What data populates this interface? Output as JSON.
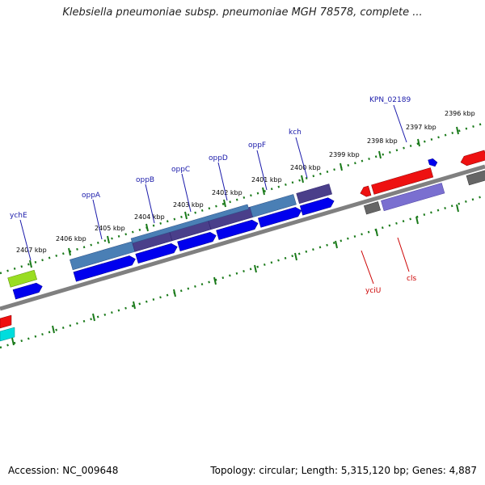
{
  "title": "Klebsiella pneumoniae subsp. pneumoniae MGH 78578, complete ...",
  "footer": {
    "accession": "Accession: NC_009648",
    "summary": "Topology: circular; Length: 5,315,120 bp; Genes: 4,887"
  },
  "ticks": [
    "2396 kbp",
    "2397 kbp",
    "2398 kbp",
    "2399 kbp",
    "2400 kbp",
    "2401 kbp",
    "2402 kbp",
    "2403 kbp",
    "2404 kbp",
    "2405 kbp",
    "2406 kbp",
    "2407 kbp"
  ],
  "gene_labels_top": [
    "ychE",
    "oppA",
    "oppB",
    "oppC",
    "oppD",
    "oppF",
    "kch",
    "KPN_02189"
  ],
  "gene_labels_bottom": [
    "yciU",
    "cls"
  ],
  "colors": {
    "backbone": "#808080",
    "tick": "#1a7a1a",
    "cds_blue": "#0000ee",
    "steel": "#4a7fb5",
    "purple": "#4a3f8a",
    "red": "#ee1111",
    "gray": "#666666",
    "lime": "#99dd22",
    "lavender": "#7a6fd0",
    "cyan": "#00dddd"
  }
}
